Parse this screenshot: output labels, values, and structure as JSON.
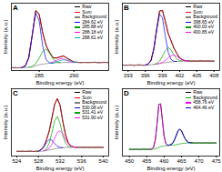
{
  "chart_data": [
    {
      "type": "line",
      "title": "A",
      "x_label": "Binding energy (eV)",
      "y_label": "Intensity (a.u.)",
      "x": [
        281,
        281.5,
        282,
        282.5,
        283,
        283.5,
        284,
        284.5,
        285,
        285.5,
        286,
        286.5,
        287,
        287.5,
        288,
        288.5,
        289,
        289.5,
        290,
        290.5,
        291,
        291.5,
        292,
        292.5,
        293,
        293.5,
        294,
        294.5,
        295
      ],
      "xlim": [
        281,
        295
      ],
      "xticks": [
        285,
        290
      ],
      "ylim": [
        0,
        100
      ],
      "tick_labels": "x",
      "legend": "upper right",
      "series": [
        {
          "name": "Raw",
          "color": "#000000",
          "values": [
            4.1,
            4.4,
            3.9,
            4.5,
            6.9,
            19.5,
            52.1,
            89.3,
            83.2,
            56.4,
            36.8,
            27.1,
            18.7,
            18.9,
            20.1,
            21.8,
            18.2,
            15.6,
            12.5,
            12.3,
            11.8,
            12.2,
            11.9,
            12.1,
            12.4,
            11.7,
            12,
            12.3,
            11.8
          ]
        },
        {
          "name": "Sum",
          "color": "#ff0000",
          "values": [
            4,
            4,
            4,
            4.2,
            6.5,
            18.8,
            53.1,
            88.6,
            84,
            55.5,
            37.6,
            26.3,
            19.2,
            18.2,
            20.5,
            21.3,
            18.6,
            15.2,
            12.9,
            12,
            12,
            12,
            12,
            12,
            12,
            12,
            12,
            12,
            12
          ]
        },
        {
          "name": "Background",
          "color": "#808080",
          "values": [
            4,
            4,
            4,
            4.2,
            4.4,
            4.8,
            5.5,
            7,
            8.5,
            9.5,
            10.3,
            10.8,
            11.2,
            11.5,
            11.7,
            11.9,
            12,
            12,
            12,
            12,
            12,
            12,
            12,
            12,
            12,
            12,
            12,
            12,
            12
          ]
        },
        {
          "name": "284.62 eV",
          "color": "#0000ff",
          "values": [
            null,
            null,
            null,
            4.2,
            6.5,
            18.8,
            52.5,
            85.4,
            74.1,
            36.5,
            15.9,
            11.4,
            11.2,
            null,
            null,
            null,
            null,
            null,
            null,
            null,
            null,
            null,
            null,
            null,
            null,
            null,
            null,
            null,
            null
          ]
        },
        {
          "name": "285.88 eV",
          "color": "#00a000",
          "values": [
            null,
            null,
            null,
            null,
            null,
            4.8,
            6.1,
            10.2,
            18.4,
            28.5,
            32,
            25.7,
            17.3,
            13,
            11.7,
            null,
            null,
            null,
            null,
            null,
            null,
            null,
            null,
            null,
            null,
            null,
            null,
            null,
            null
          ]
        },
        {
          "name": "288.18 eV",
          "color": "#ff00ff",
          "values": [
            null,
            null,
            null,
            null,
            null,
            null,
            null,
            null,
            null,
            null,
            null,
            10.8,
            12.6,
            15.2,
            17.5,
            17.3,
            15,
            13,
            12,
            null,
            null,
            null,
            null,
            null,
            null,
            null,
            null,
            null,
            null
          ]
        },
        {
          "name": "288.61 eV",
          "color": "#00b0b0",
          "values": [
            null,
            null,
            null,
            null,
            null,
            null,
            null,
            null,
            null,
            null,
            null,
            10.8,
            11.7,
            13,
            14.7,
            15.9,
            15.6,
            14.2,
            12.9,
            12,
            null,
            null,
            null,
            null,
            null,
            null,
            null,
            null,
            null
          ]
        }
      ]
    },
    {
      "type": "line",
      "title": "B",
      "x_label": "Binding energy (eV)",
      "y_label": "Intensity (a.u.)",
      "x": [
        392,
        392.5,
        393,
        393.5,
        394,
        394.5,
        395,
        395.5,
        396,
        396.5,
        397,
        397.5,
        398,
        398.5,
        399,
        399.5,
        400,
        400.5,
        401,
        401.5,
        402,
        402.5,
        403,
        403.5,
        404,
        404.5,
        405,
        405.5,
        406,
        406.5,
        407,
        407.5,
        408
      ],
      "xlim": [
        392,
        409
      ],
      "xticks": [
        393,
        396,
        399,
        402,
        405,
        408
      ],
      "ylim": [
        0,
        100
      ],
      "tick_labels": "x",
      "legend": "upper right",
      "series": [
        {
          "name": "Raw",
          "color": "#000000",
          "values": [
            8.3,
            7.8,
            8.1,
            8.4,
            7.7,
            8.2,
            8.5,
            7.9,
            8.1,
            9.8,
            14.6,
            32.9,
            61.4,
            88.5,
            89.1,
            73.2,
            54.8,
            44.5,
            33.1,
            25.6,
            18.7,
            16.2,
            14.3,
            14.4,
            13.8,
            14.2,
            13.7,
            14.3,
            14.1,
            13.9,
            14.2,
            13.8,
            14
          ]
        },
        {
          "name": "Sum",
          "color": "#ff0000",
          "values": [
            8,
            8,
            8,
            8,
            8,
            8,
            8,
            8,
            8,
            9.4,
            15.2,
            32,
            62.1,
            87.9,
            89.6,
            72.4,
            55.5,
            43.7,
            33.7,
            25,
            19.2,
            15.9,
            14.6,
            14,
            14,
            14,
            14,
            14,
            14,
            14,
            14,
            14,
            14
          ]
        },
        {
          "name": "Background",
          "color": "#808080",
          "values": [
            8,
            8,
            8,
            8,
            8,
            8,
            8,
            8,
            8,
            8.2,
            8.5,
            9,
            9.6,
            10.3,
            11,
            11.7,
            12.3,
            12.8,
            13.2,
            13.5,
            13.8,
            14,
            14,
            14,
            14,
            14,
            14,
            14,
            14,
            14,
            14,
            14,
            14
          ]
        },
        {
          "name": "398.65 eV",
          "color": "#0000ff",
          "values": [
            null,
            null,
            null,
            null,
            null,
            null,
            null,
            null,
            8,
            9.4,
            15.2,
            32,
            61.1,
            83.8,
            78.3,
            51.2,
            27.1,
            16.4,
            13.7,
            13.5,
            null,
            null,
            null,
            null,
            null,
            null,
            null,
            null,
            null,
            null,
            null,
            null,
            null
          ]
        },
        {
          "name": "400.00 eV",
          "color": "#00a000",
          "values": [
            null,
            null,
            null,
            null,
            null,
            null,
            null,
            null,
            null,
            null,
            null,
            9,
            10.6,
            14.1,
            21.1,
            29.7,
            34.3,
            30.8,
            23.3,
            17.3,
            14.8,
            14,
            null,
            null,
            null,
            null,
            null,
            null,
            null,
            null,
            null,
            null,
            null
          ]
        },
        {
          "name": "400.85 eV",
          "color": "#ff00ff",
          "values": [
            null,
            null,
            null,
            null,
            null,
            null,
            null,
            null,
            null,
            null,
            null,
            null,
            9.6,
            10.6,
            12.2,
            14.9,
            18.7,
            22.1,
            23.1,
            21.2,
            18.2,
            15.9,
            14.6,
            14,
            null,
            null,
            null,
            null,
            null,
            null,
            null,
            null,
            null
          ]
        }
      ]
    },
    {
      "type": "line",
      "title": "C",
      "x_label": "Binding energy (eV)",
      "y_label": "Intensity (a.u.)",
      "x": [
        524,
        524.5,
        525,
        525.5,
        526,
        526.5,
        527,
        527.5,
        528,
        528.5,
        529,
        529.5,
        530,
        530.5,
        531,
        531.5,
        532,
        532.5,
        533,
        533.5,
        534,
        534.5,
        535,
        535.5,
        536,
        536.5,
        537,
        537.5,
        538,
        538.5,
        539,
        539.5,
        540
      ],
      "xlim": [
        523,
        541
      ],
      "xticks": [
        524,
        528,
        532,
        536,
        540
      ],
      "ylim": [
        0,
        115
      ],
      "tick_labels": "x",
      "legend": "upper right",
      "series": [
        {
          "name": "Raw",
          "color": "#000000",
          "values": [
            8.2,
            7.9,
            8.3,
            7.8,
            8.1,
            8.4,
            7.7,
            8.2,
            8.3,
            11.2,
            15.6,
            28.1,
            42.7,
            65.3,
            88.6,
            97.9,
            87.1,
            59.4,
            37.2,
            22.6,
            17.3,
            15.8,
            14.7,
            15.2,
            15.1,
            14.8,
            15.3,
            14.9,
            15.2,
            14.7,
            15.1,
            15,
            14.8
          ]
        },
        {
          "name": "Sum",
          "color": "#ff0000",
          "values": [
            8,
            8,
            8,
            8,
            8,
            8,
            8,
            8,
            8,
            10.9,
            16,
            27.4,
            43.2,
            64.6,
            87.9,
            98.6,
            86.4,
            60,
            36.5,
            23,
            17,
            15.5,
            15,
            15,
            15,
            15,
            15,
            15,
            15,
            15,
            15,
            15,
            15
          ]
        },
        {
          "name": "Background",
          "color": "#808080",
          "values": [
            8,
            8,
            8,
            8,
            8,
            8,
            8,
            8,
            8,
            8.3,
            8.8,
            9.5,
            10.4,
            11.3,
            12.2,
            13,
            13.7,
            14.3,
            14.7,
            15,
            15,
            15,
            15,
            15,
            15,
            15,
            15,
            15,
            15,
            15,
            15,
            15,
            15
          ]
        },
        {
          "name": "530.08 eV",
          "color": "#0000ff",
          "values": [
            null,
            null,
            null,
            null,
            null,
            null,
            null,
            null,
            8,
            10.9,
            16,
            23.4,
            28.4,
            27,
            21.5,
            16.7,
            14.7,
            14.3,
            null,
            null,
            null,
            null,
            null,
            null,
            null,
            null,
            null,
            null,
            null,
            null,
            null,
            null,
            null
          ]
        },
        {
          "name": "531.41 eV",
          "color": "#00a000",
          "values": [
            null,
            null,
            null,
            null,
            null,
            null,
            null,
            null,
            null,
            null,
            8.8,
            12.7,
            22,
            40,
            60.4,
            67.7,
            55.6,
            36,
            22.3,
            16.8,
            15,
            null,
            null,
            null,
            null,
            null,
            null,
            null,
            null,
            null,
            null,
            null,
            null
          ]
        },
        {
          "name": "531.90 eV",
          "color": "#ff00ff",
          "values": [
            null,
            null,
            null,
            null,
            null,
            null,
            null,
            null,
            null,
            null,
            8.8,
            10.3,
            13.6,
            20.2,
            30.4,
            40.2,
            43.5,
            38.3,
            28.9,
            21.2,
            17,
            15.5,
            15,
            null,
            null,
            null,
            null,
            null,
            null,
            null,
            null,
            null,
            null
          ]
        }
      ]
    },
    {
      "type": "line",
      "title": "D",
      "x_label": "Binding energy (eV)",
      "y_label": "Intensity (a.u.)",
      "x": [
        450,
        451,
        452,
        453,
        454,
        455,
        456,
        456.5,
        457,
        457.5,
        458,
        458.5,
        459,
        459.5,
        460,
        460.5,
        461,
        461.5,
        462,
        462.5,
        463,
        463.5,
        464,
        464.5,
        465,
        465.5,
        466,
        466.5,
        467,
        468,
        469,
        470,
        471,
        472,
        473,
        474,
        475
      ],
      "xlim": [
        448,
        476
      ],
      "xticks": [
        450,
        455,
        460,
        465,
        470,
        475
      ],
      "ylim": [
        0,
        100
      ],
      "tick_labels": "x",
      "legend": "upper right",
      "series": [
        {
          "name": "Raw",
          "color": "#000000",
          "values": [
            10.2,
            9.8,
            10.1,
            9.9,
            10.3,
            10,
            10.1,
            10.5,
            13.6,
            24.8,
            49.1,
            76.8,
            77.5,
            53.9,
            29.1,
            18.9,
            16.5,
            16.2,
            17.4,
            19.3,
            24.4,
            30.5,
            37.6,
            39.7,
            37.8,
            31.4,
            26.1,
            22.4,
            20.2,
            19.8,
            19.3,
            19.6,
            19.4,
            19.7,
            19.3,
            19.6,
            19.5
          ]
        },
        {
          "name": "Background",
          "color": "#00a000",
          "values": [
            10,
            10,
            10,
            10,
            10,
            10,
            10,
            10.2,
            10.5,
            11,
            11.8,
            12.8,
            13.8,
            14.6,
            15.2,
            15.6,
            15.8,
            16,
            16.1,
            16.3,
            16.5,
            16.9,
            17.4,
            18,
            18.5,
            18.9,
            19.2,
            19.4,
            19.5,
            19.5,
            19.5,
            19.5,
            19.5,
            19.5,
            19.5,
            19.5,
            19.5
          ]
        },
        {
          "name": "458.76 eV",
          "color": "#ff00ff",
          "values": [
            null,
            null,
            null,
            null,
            null,
            null,
            10,
            10.6,
            13.4,
            24.5,
            49.5,
            76.3,
            77.9,
            53.5,
            29.3,
            18.7,
            16.2,
            16,
            null,
            null,
            null,
            null,
            null,
            null,
            null,
            null,
            null,
            null,
            null,
            null,
            null,
            null,
            null,
            null,
            null,
            null,
            null
          ]
        },
        {
          "name": "464.46 eV",
          "color": "#0000ff",
          "values": [
            null,
            null,
            null,
            null,
            null,
            null,
            null,
            null,
            null,
            null,
            null,
            null,
            null,
            null,
            null,
            null,
            15.8,
            16.3,
            17.2,
            19.5,
            24.1,
            30.8,
            37.2,
            40,
            37.5,
            31.7,
            25.9,
            22.2,
            20.4,
            19.5,
            null,
            null,
            null,
            null,
            null,
            null,
            null
          ]
        }
      ]
    }
  ]
}
